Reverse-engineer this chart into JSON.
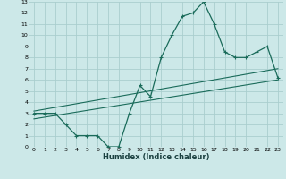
{
  "xlabel": "Humidex (Indice chaleur)",
  "bg_color": "#cce8e8",
  "grid_color": "#aacece",
  "line_color": "#1a6b5a",
  "xlim": [
    -0.5,
    23.5
  ],
  "ylim": [
    0,
    13
  ],
  "xticks": [
    0,
    1,
    2,
    3,
    4,
    5,
    6,
    7,
    8,
    9,
    10,
    11,
    12,
    13,
    14,
    15,
    16,
    17,
    18,
    19,
    20,
    21,
    22,
    23
  ],
  "yticks": [
    0,
    1,
    2,
    3,
    4,
    5,
    6,
    7,
    8,
    9,
    10,
    11,
    12,
    13
  ],
  "curve1_x": [
    0,
    1,
    2,
    3,
    4,
    5,
    6,
    7,
    8,
    9,
    10,
    11,
    12,
    13,
    14,
    15,
    16,
    17,
    18,
    19,
    20,
    21,
    22,
    23
  ],
  "curve1_y": [
    3,
    3,
    3,
    2,
    1,
    1,
    1,
    0,
    0,
    3,
    5.5,
    4.5,
    8,
    10,
    11.7,
    12,
    13,
    11,
    8.5,
    8,
    8,
    8.5,
    9,
    6.2
  ],
  "line2_x": [
    0,
    23
  ],
  "line2_y": [
    3.2,
    7.0
  ],
  "line3_x": [
    0,
    23
  ],
  "line3_y": [
    2.5,
    6.0
  ]
}
